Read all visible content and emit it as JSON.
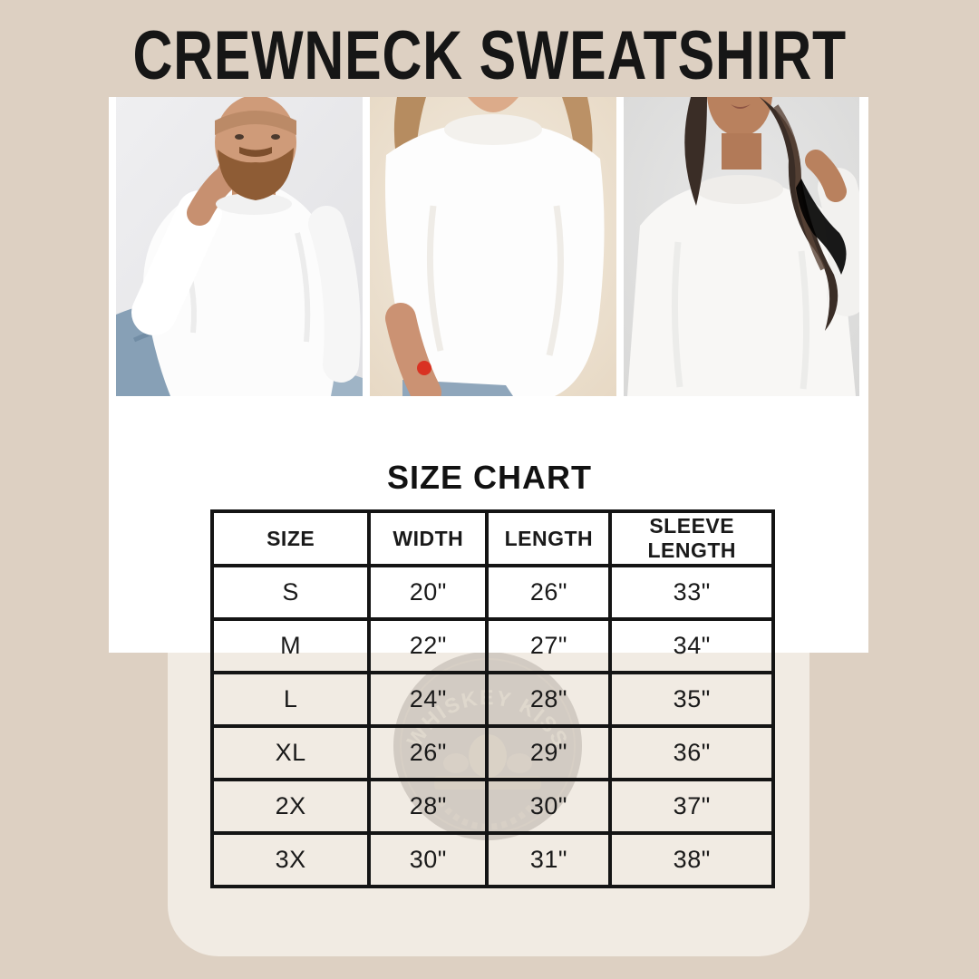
{
  "page": {
    "title": "CREWNECK SWEATSHIRT"
  },
  "photos": [
    {
      "name": "bearded-man-white-crewneck-sitting"
    },
    {
      "name": "woman-white-crewneck-red-nails-torso"
    },
    {
      "name": "dark-haired-woman-white-crewneck"
    }
  ],
  "size_chart": {
    "heading": "SIZE CHART",
    "columns": [
      "SIZE",
      "WIDTH",
      "LENGTH",
      "SLEEVE LENGTH"
    ],
    "rows": [
      [
        "S",
        "20\"",
        "26\"",
        "33\""
      ],
      [
        "M",
        "22\"",
        "27\"",
        "34\""
      ],
      [
        "L",
        "24\"",
        "28\"",
        "35\""
      ],
      [
        "XL",
        "26\"",
        "29\"",
        "36\""
      ],
      [
        "2X",
        "28\"",
        "30\"",
        "37\""
      ],
      [
        "3X",
        "30\"",
        "31\"",
        "38\""
      ]
    ]
  },
  "watermark": {
    "text": "WHISKEY KISS"
  },
  "chart_data": {
    "type": "table",
    "title": "SIZE CHART",
    "categories": [
      "S",
      "M",
      "L",
      "XL",
      "2X",
      "3X"
    ],
    "series": [
      {
        "name": "WIDTH",
        "values": [
          20,
          22,
          24,
          26,
          28,
          30
        ]
      },
      {
        "name": "LENGTH",
        "values": [
          26,
          27,
          28,
          29,
          30,
          31
        ]
      },
      {
        "name": "SLEEVE LENGTH",
        "values": [
          33,
          34,
          35,
          36,
          37,
          38
        ]
      }
    ],
    "units": "inches"
  },
  "colors": {
    "background": "#ddd0c2",
    "panel": "#f1ebe3",
    "card": "#ffffff",
    "table_border": "#141414",
    "title_text": "#161616"
  }
}
